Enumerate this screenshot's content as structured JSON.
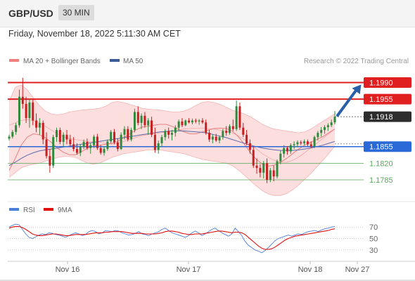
{
  "header": {
    "symbol": "GBP/USD",
    "timeframe": "30 MIN",
    "datetime": "Friday, November 18, 2022 5:11:30 AM CET"
  },
  "legend": {
    "items": [
      {
        "label": "MA 20 + Bollinger Bands",
        "color": "#f08080"
      },
      {
        "label": "MA 50",
        "color": "#3a5a9a"
      }
    ],
    "credit": "Research © 2022 Trading Central"
  },
  "rsi_legend": {
    "items": [
      {
        "label": "RSI",
        "color": "#4a7fd9"
      },
      {
        "label": "9MA",
        "color": "#e01010"
      }
    ]
  },
  "colors": {
    "up": "#2e8b3c",
    "down": "#c62020",
    "resistance": "#e02020",
    "support": "#2a6ad8",
    "secondary_support": "#58a858",
    "bollinger": "#fdd8d8",
    "ma20": "#e88080",
    "ma50": "#5a6aa8",
    "current_tag": "#2d2d2d",
    "arrow": "#2a5fa8"
  },
  "chart_data": [
    {
      "type": "candlestick",
      "price_range": [
        1.1745,
        1.201
      ],
      "x_ticks": [
        "Nov 16",
        "Nov 17",
        "Nov 18",
        "Nov 27"
      ],
      "levels": [
        {
          "value": 1.199,
          "label": "1.1990",
          "kind": "resistance"
        },
        {
          "value": 1.1955,
          "label": "1.1955",
          "kind": "resistance"
        },
        {
          "value": 1.1918,
          "label": "1.1918",
          "kind": "current"
        },
        {
          "value": 1.1855,
          "label": "1.1855",
          "kind": "pivot"
        },
        {
          "value": 1.182,
          "label": "1.1820",
          "kind": "support"
        },
        {
          "value": 1.1785,
          "label": "1.1785",
          "kind": "support"
        }
      ],
      "candles": [
        [
          1.1872,
          1.188,
          1.1868,
          1.1876
        ],
        [
          1.1876,
          1.189,
          1.1872,
          1.1886
        ],
        [
          1.1886,
          1.1905,
          1.188,
          1.19
        ],
        [
          1.19,
          1.1975,
          1.1895,
          1.196
        ],
        [
          1.196,
          1.2,
          1.1935,
          1.1945
        ],
        [
          1.1945,
          1.196,
          1.1905,
          1.1915
        ],
        [
          1.1915,
          1.1955,
          1.1895,
          1.1948
        ],
        [
          1.1948,
          1.1955,
          1.19,
          1.191
        ],
        [
          1.191,
          1.1925,
          1.1885,
          1.1895
        ],
        [
          1.1895,
          1.1915,
          1.188,
          1.1905
        ],
        [
          1.1905,
          1.191,
          1.186,
          1.187
        ],
        [
          1.187,
          1.1885,
          1.183,
          1.1835
        ],
        [
          1.1835,
          1.185,
          1.18,
          1.1815
        ],
        [
          1.1815,
          1.188,
          1.181,
          1.1875
        ],
        [
          1.1875,
          1.1895,
          1.1865,
          1.189
        ],
        [
          1.189,
          1.1895,
          1.186,
          1.1865
        ],
        [
          1.1865,
          1.1885,
          1.1855,
          1.188
        ],
        [
          1.188,
          1.189,
          1.186,
          1.187
        ],
        [
          1.187,
          1.188,
          1.1855,
          1.186
        ],
        [
          1.186,
          1.1875,
          1.1845,
          1.185
        ],
        [
          1.185,
          1.1862,
          1.1838,
          1.1842
        ],
        [
          1.1842,
          1.186,
          1.1835,
          1.1855
        ],
        [
          1.1855,
          1.187,
          1.185,
          1.1865
        ],
        [
          1.1865,
          1.1872,
          1.1848,
          1.1852
        ],
        [
          1.1852,
          1.1862,
          1.184,
          1.1858
        ],
        [
          1.1858,
          1.188,
          1.1852,
          1.1876
        ],
        [
          1.1876,
          1.1882,
          1.1848,
          1.1852
        ],
        [
          1.1852,
          1.1858,
          1.1838,
          1.1842
        ],
        [
          1.1842,
          1.1856,
          1.1836,
          1.185
        ],
        [
          1.185,
          1.187,
          1.1846,
          1.1866
        ],
        [
          1.1866,
          1.189,
          1.1862,
          1.1886
        ],
        [
          1.1886,
          1.1892,
          1.186,
          1.1864
        ],
        [
          1.1864,
          1.1872,
          1.1845,
          1.185
        ],
        [
          1.185,
          1.1885,
          1.1848,
          1.188
        ],
        [
          1.188,
          1.1898,
          1.187,
          1.1892
        ],
        [
          1.1892,
          1.1898,
          1.1866,
          1.187
        ],
        [
          1.187,
          1.1895,
          1.1866,
          1.189
        ],
        [
          1.189,
          1.1935,
          1.1885,
          1.1928
        ],
        [
          1.1928,
          1.194,
          1.19,
          1.1905
        ],
        [
          1.1905,
          1.1925,
          1.1892,
          1.192
        ],
        [
          1.192,
          1.1928,
          1.1895,
          1.19
        ],
        [
          1.19,
          1.1915,
          1.188,
          1.191
        ],
        [
          1.191,
          1.1918,
          1.1875,
          1.188
        ],
        [
          1.188,
          1.1895,
          1.1842,
          1.1848
        ],
        [
          1.1848,
          1.1868,
          1.184,
          1.1862
        ],
        [
          1.1862,
          1.188,
          1.1855,
          1.1875
        ],
        [
          1.1875,
          1.1892,
          1.1868,
          1.1888
        ],
        [
          1.1888,
          1.1895,
          1.1872,
          1.188
        ],
        [
          1.188,
          1.189,
          1.1868,
          1.1884
        ],
        [
          1.1884,
          1.19,
          1.1876,
          1.1895
        ],
        [
          1.1895,
          1.1912,
          1.1888,
          1.1908
        ],
        [
          1.1908,
          1.1915,
          1.1896,
          1.19
        ],
        [
          1.19,
          1.1912,
          1.1898,
          1.191
        ],
        [
          1.191,
          1.1915,
          1.1904,
          1.1906
        ],
        [
          1.1906,
          1.1914,
          1.1902,
          1.191
        ],
        [
          1.191,
          1.1914,
          1.1904,
          1.1908
        ],
        [
          1.1908,
          1.1913,
          1.1901,
          1.191
        ],
        [
          1.191,
          1.1915,
          1.1903,
          1.1906
        ],
        [
          1.1906,
          1.1912,
          1.188,
          1.1884
        ],
        [
          1.1884,
          1.189,
          1.1865,
          1.187
        ],
        [
          1.187,
          1.188,
          1.1862,
          1.1876
        ],
        [
          1.1876,
          1.1882,
          1.1865,
          1.1868
        ],
        [
          1.1868,
          1.1878,
          1.1862,
          1.1875
        ],
        [
          1.1875,
          1.1892,
          1.187,
          1.1888
        ],
        [
          1.1888,
          1.1898,
          1.1878,
          1.1884
        ],
        [
          1.1884,
          1.1902,
          1.188,
          1.1898
        ],
        [
          1.1898,
          1.1912,
          1.1888,
          1.1892
        ],
        [
          1.1892,
          1.1952,
          1.1888,
          1.194
        ],
        [
          1.194,
          1.1948,
          1.189,
          1.1895
        ],
        [
          1.1895,
          1.1905,
          1.1875,
          1.188
        ],
        [
          1.188,
          1.189,
          1.1858,
          1.1862
        ],
        [
          1.1862,
          1.187,
          1.184,
          1.1848
        ],
        [
          1.1848,
          1.1855,
          1.181,
          1.1815
        ],
        [
          1.1815,
          1.183,
          1.1798,
          1.181
        ],
        [
          1.181,
          1.1818,
          1.179,
          1.18
        ],
        [
          1.18,
          1.1825,
          1.1788,
          1.182
        ],
        [
          1.182,
          1.183,
          1.1778,
          1.1785
        ],
        [
          1.1785,
          1.181,
          1.178,
          1.1805
        ],
        [
          1.1805,
          1.1815,
          1.1782,
          1.1792
        ],
        [
          1.1792,
          1.1828,
          1.1788,
          1.1824
        ],
        [
          1.1824,
          1.1846,
          1.1818,
          1.184
        ],
        [
          1.184,
          1.1858,
          1.1832,
          1.1852
        ],
        [
          1.1852,
          1.1856,
          1.1838,
          1.1845
        ],
        [
          1.1845,
          1.1862,
          1.184,
          1.1858
        ],
        [
          1.1858,
          1.1866,
          1.185,
          1.186
        ],
        [
          1.186,
          1.1868,
          1.1854,
          1.1864
        ],
        [
          1.1864,
          1.1868,
          1.1858,
          1.1862
        ],
        [
          1.1862,
          1.187,
          1.1858,
          1.1866
        ],
        [
          1.1866,
          1.187,
          1.1856,
          1.186
        ],
        [
          1.186,
          1.1866,
          1.1852,
          1.1856
        ],
        [
          1.1856,
          1.1878,
          1.1852,
          1.1875
        ],
        [
          1.1875,
          1.1888,
          1.1868,
          1.1884
        ],
        [
          1.1884,
          1.1896,
          1.1876,
          1.189
        ],
        [
          1.189,
          1.19,
          1.1882,
          1.1896
        ],
        [
          1.1896,
          1.1904,
          1.1888,
          1.19
        ],
        [
          1.19,
          1.1912,
          1.1896,
          1.1906
        ],
        [
          1.1906,
          1.193,
          1.1902,
          1.1918
        ]
      ],
      "bollinger": {
        "mid": [
          1.19,
          1.1905,
          1.191,
          1.1912,
          1.191,
          1.1905,
          1.1898,
          1.189,
          1.1882,
          1.1876,
          1.1872,
          1.187,
          1.1868,
          1.1866,
          1.1865,
          1.1864,
          1.1862,
          1.186,
          1.1862,
          1.1866,
          1.187,
          1.1874,
          1.1878,
          1.188,
          1.1882,
          1.1884,
          1.1886,
          1.1888,
          1.189,
          1.1892,
          1.1893,
          1.1894,
          1.1894,
          1.1893,
          1.1892,
          1.189,
          1.1888,
          1.1884,
          1.1878,
          1.187,
          1.186,
          1.185,
          1.184,
          1.1832,
          1.1826,
          1.1822,
          1.1822,
          1.1826,
          1.1833,
          1.1842,
          1.1852,
          1.1862,
          1.1872,
          1.1882,
          1.1892
        ],
        "upper": [
          1.195,
          1.198,
          1.1985,
          1.1975,
          1.1958,
          1.1942,
          1.193,
          1.1924,
          1.1922,
          1.1924,
          1.1928,
          1.193,
          1.1932,
          1.1933,
          1.1934,
          1.1936,
          1.194,
          1.1948,
          1.195,
          1.1948,
          1.1944,
          1.194,
          1.1936,
          1.1934,
          1.1933,
          1.1932,
          1.193,
          1.1928,
          1.1928,
          1.193,
          1.1935,
          1.1942,
          1.1948,
          1.195,
          1.1948,
          1.1944,
          1.1938,
          1.1932,
          1.1928,
          1.1924,
          1.1918,
          1.191,
          1.1902,
          1.1896,
          1.1892,
          1.189,
          1.1888,
          1.1886,
          1.1884,
          1.1886,
          1.1892,
          1.19,
          1.1908,
          1.1916,
          1.1924
        ],
        "lower": [
          1.179,
          1.18,
          1.181,
          1.1815,
          1.1818,
          1.182,
          1.1824,
          1.1828,
          1.1832,
          1.1834,
          1.1834,
          1.1832,
          1.1826,
          1.182,
          1.1818,
          1.182,
          1.1826,
          1.1832,
          1.1836,
          1.184,
          1.1842,
          1.1844,
          1.1846,
          1.1848,
          1.1848,
          1.1848,
          1.1846,
          1.1844,
          1.1842,
          1.184,
          1.1836,
          1.1832,
          1.1828,
          1.1826,
          1.1824,
          1.1822,
          1.182,
          1.1815,
          1.1806,
          1.1795,
          1.1783,
          1.1772,
          1.1762,
          1.1755,
          1.1752,
          1.1752,
          1.1756,
          1.1764,
          1.1774,
          1.1786,
          1.1798,
          1.1812,
          1.1826,
          1.184,
          1.1856
        ],
        "ma20": [
          1.1805,
          1.183,
          1.1858,
          1.1875,
          1.1882,
          1.188,
          1.1874,
          1.1864,
          1.1852,
          1.1843,
          1.1838,
          1.1838,
          1.1844,
          1.1852,
          1.1856,
          1.1858,
          1.186,
          1.1862,
          1.1866,
          1.1874,
          1.1882,
          1.189,
          1.1896,
          1.1898,
          1.19,
          1.1902,
          1.1902,
          1.1898,
          1.1892,
          1.1886,
          1.1882,
          1.1882,
          1.1886,
          1.189,
          1.1893,
          1.1894,
          1.1893,
          1.1888,
          1.1876,
          1.186,
          1.1842,
          1.1828,
          1.1818,
          1.1814,
          1.1816,
          1.1822,
          1.183,
          1.184,
          1.185,
          1.1858,
          1.1864,
          1.187,
          1.1876,
          1.1884,
          1.1892
        ],
        "ma50": [
          1.1815,
          1.1822,
          1.183,
          1.1837,
          1.1842,
          1.1846,
          1.1848,
          1.185,
          1.1852,
          1.1854,
          1.1856,
          1.1858,
          1.186,
          1.1862,
          1.1864,
          1.1866,
          1.1868,
          1.187,
          1.1872,
          1.1874,
          1.1876,
          1.1878,
          1.188,
          1.1882,
          1.1884,
          1.1886,
          1.1887,
          1.1888,
          1.1888,
          1.1888,
          1.1887,
          1.1886,
          1.1885,
          1.1883,
          1.188,
          1.1877,
          1.1874,
          1.187,
          1.1866,
          1.1862,
          1.1858,
          1.1855,
          1.1852,
          1.185,
          1.1848,
          1.1847,
          1.1847,
          1.1847,
          1.1848,
          1.185,
          1.1852,
          1.1855,
          1.1858,
          1.1862,
          1.1866
        ]
      }
    },
    {
      "type": "line",
      "y_ticks": [
        70,
        50,
        30
      ],
      "ylim": [
        15,
        85
      ],
      "series": [
        {
          "name": "RSI",
          "values": [
            70,
            73,
            75,
            74,
            66,
            58,
            52,
            50,
            53,
            56,
            58,
            57,
            60,
            59,
            57,
            56,
            54,
            52,
            55,
            58,
            60,
            58,
            55,
            57,
            62,
            64,
            62,
            58,
            60,
            64,
            63,
            62,
            64,
            63,
            60,
            58,
            56,
            57,
            59,
            62,
            58,
            57,
            55,
            58,
            60,
            62,
            66,
            68,
            64,
            60,
            58,
            56,
            54,
            52,
            55,
            60,
            63,
            60,
            55,
            58,
            62,
            66,
            68,
            64,
            60,
            57,
            54,
            58,
            68,
            62,
            55,
            45,
            38,
            34,
            30,
            28,
            25,
            29,
            34,
            40,
            46,
            50,
            52,
            54,
            56,
            54,
            56,
            58,
            57,
            60,
            62,
            63,
            64,
            62,
            65,
            67,
            68,
            70,
            71
          ]
        },
        {
          "name": "9MA",
          "values": [
            68,
            70,
            71,
            71,
            69,
            66,
            62,
            58,
            56,
            55,
            55,
            56,
            57,
            58,
            58,
            57,
            56,
            55,
            55,
            56,
            57,
            57,
            57,
            57,
            58,
            59,
            60,
            60,
            60,
            61,
            61,
            62,
            62,
            62,
            62,
            61,
            60,
            59,
            59,
            59,
            59,
            58,
            58,
            58,
            58,
            59,
            60,
            62,
            63,
            63,
            62,
            61,
            59,
            58,
            57,
            57,
            58,
            58,
            58,
            59,
            60,
            61,
            62,
            63,
            63,
            62,
            61,
            60,
            61,
            61,
            60,
            57,
            52,
            47,
            42,
            37,
            33,
            31,
            31,
            32,
            35,
            39,
            43,
            47,
            50,
            52,
            54,
            55,
            56,
            57,
            58,
            59,
            60,
            61,
            62,
            63,
            64,
            66,
            67
          ]
        }
      ]
    }
  ]
}
